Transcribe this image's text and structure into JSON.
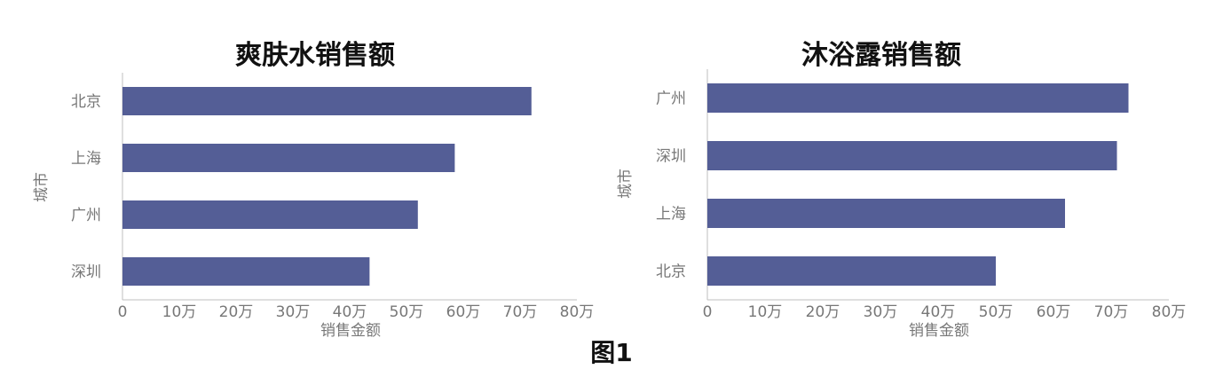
{
  "colors": {
    "bar": "#545E96",
    "axis": "#BFBFBF",
    "text": "#777777"
  },
  "figure_caption": "图1",
  "chart_data": [
    {
      "type": "bar",
      "orientation": "horizontal",
      "title": "爽肤水销售额",
      "xlabel": "销售金额",
      "ylabel": "城市",
      "categories": [
        "北京",
        "上海",
        "广州",
        "深圳"
      ],
      "values": [
        72,
        58.5,
        52,
        43.5
      ],
      "xlim": [
        0,
        80
      ],
      "xticks": [
        "0",
        "10万",
        "20万",
        "30万",
        "40万",
        "50万",
        "60万",
        "70万",
        "80万"
      ],
      "grid": false,
      "legend": "none"
    },
    {
      "type": "bar",
      "orientation": "horizontal",
      "title": "沐浴露销售额",
      "xlabel": "销售金额",
      "ylabel": "城市",
      "categories": [
        "广州",
        "深圳",
        "上海",
        "北京"
      ],
      "values": [
        73,
        71,
        62,
        50
      ],
      "xlim": [
        0,
        80
      ],
      "xticks": [
        "0",
        "10万",
        "20万",
        "30万",
        "40万",
        "50万",
        "60万",
        "70万",
        "80万"
      ],
      "grid": false,
      "legend": "none"
    }
  ]
}
